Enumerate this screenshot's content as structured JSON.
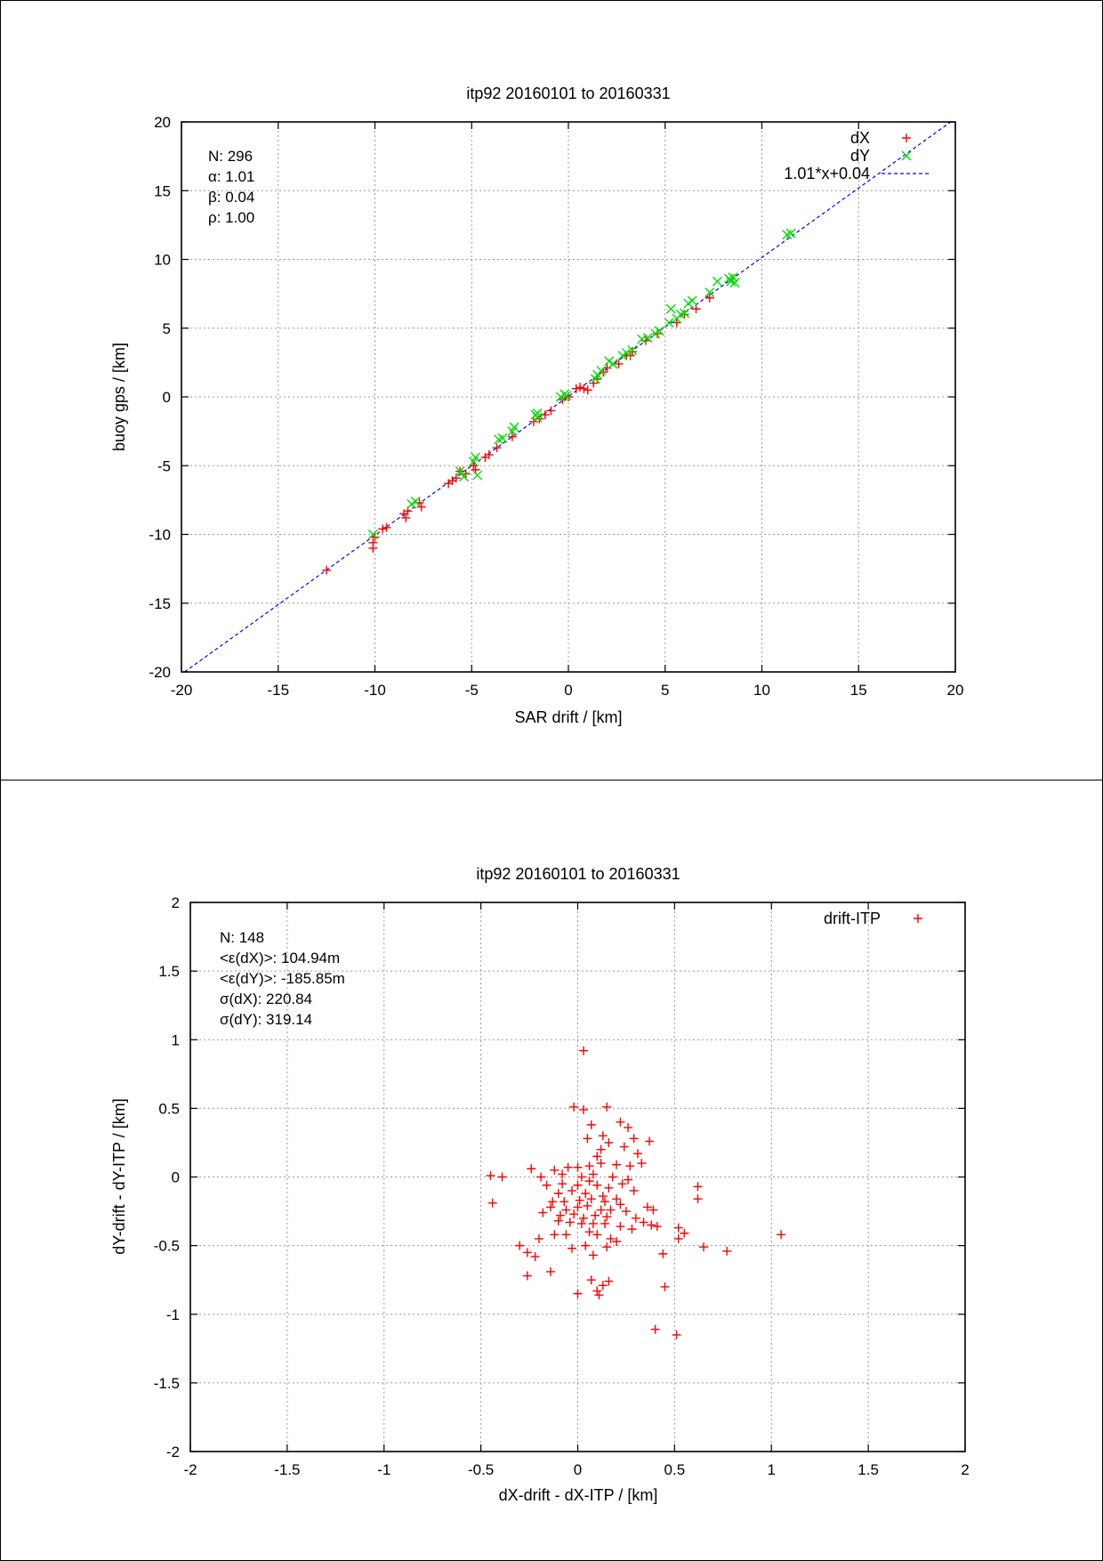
{
  "chart_data": [
    {
      "type": "scatter",
      "title": "itp92 20160101 to 20160331",
      "xlabel": "SAR drift / [km]",
      "ylabel": "buoy gps / [km]",
      "xlim": [
        -20,
        20
      ],
      "ylim": [
        -20,
        20
      ],
      "xticks": [
        "-20",
        "-15",
        "-10",
        "-5",
        "0",
        "5",
        "10",
        "15",
        "20"
      ],
      "yticks": [
        "-20",
        "-15",
        "-10",
        "-5",
        "0",
        "5",
        "10",
        "15",
        "20"
      ],
      "xtick_values": [
        -20,
        -15,
        -10,
        -5,
        0,
        5,
        10,
        15,
        20
      ],
      "ytick_values": [
        -20,
        -15,
        -10,
        -5,
        0,
        5,
        10,
        15,
        20
      ],
      "grid": true,
      "legend_position": "top-right",
      "stats": [
        "N: 296",
        "α: 1.01",
        "β: 0.04",
        "ρ: 1.00"
      ],
      "series": [
        {
          "name": "dX",
          "marker": "plus",
          "color": "#ff0000",
          "points": [
            [
              -12.5,
              -12.6
            ],
            [
              -10.1,
              -10.6
            ],
            [
              -10.1,
              -11.0
            ],
            [
              -10.0,
              -10.2
            ],
            [
              -9.6,
              -9.6
            ],
            [
              -9.4,
              -9.5
            ],
            [
              -8.5,
              -8.5
            ],
            [
              -8.4,
              -8.8
            ],
            [
              -8.3,
              -8.3
            ],
            [
              -7.7,
              -7.7
            ],
            [
              -7.6,
              -8.0
            ],
            [
              -6.2,
              -6.3
            ],
            [
              -6.0,
              -6.1
            ],
            [
              -5.8,
              -5.9
            ],
            [
              -5.6,
              -5.4
            ],
            [
              -5.3,
              -5.6
            ],
            [
              -4.9,
              -5.0
            ],
            [
              -4.8,
              -5.3
            ],
            [
              -4.3,
              -4.4
            ],
            [
              -4.1,
              -4.2
            ],
            [
              -3.7,
              -3.7
            ],
            [
              -2.9,
              -2.9
            ],
            [
              -1.8,
              -1.8
            ],
            [
              -1.5,
              -1.6
            ],
            [
              -1.2,
              -1.3
            ],
            [
              -0.9,
              -1.0
            ],
            [
              -0.3,
              -0.2
            ],
            [
              0.0,
              0.0
            ],
            [
              0.4,
              0.6
            ],
            [
              0.6,
              0.7
            ],
            [
              0.8,
              0.6
            ],
            [
              1.0,
              0.5
            ],
            [
              1.3,
              1.0
            ],
            [
              1.5,
              1.3
            ],
            [
              1.8,
              1.8
            ],
            [
              2.0,
              2.1
            ],
            [
              2.6,
              2.4
            ],
            [
              3.0,
              3.0
            ],
            [
              3.2,
              3.0
            ],
            [
              3.3,
              3.3
            ],
            [
              4.0,
              4.1
            ],
            [
              4.6,
              4.6
            ],
            [
              5.6,
              5.4
            ],
            [
              6.0,
              6.0
            ],
            [
              6.6,
              6.4
            ],
            [
              7.3,
              7.2
            ]
          ]
        },
        {
          "name": "dY",
          "marker": "cross",
          "color": "#00dd00",
          "points": [
            [
              -10.1,
              -10.0
            ],
            [
              -8.1,
              -7.8
            ],
            [
              -7.9,
              -7.6
            ],
            [
              -5.6,
              -5.4
            ],
            [
              -5.4,
              -5.8
            ],
            [
              -4.9,
              -4.7
            ],
            [
              -4.8,
              -4.4
            ],
            [
              -4.7,
              -5.7
            ],
            [
              -3.6,
              -3.1
            ],
            [
              -3.4,
              -3.0
            ],
            [
              -2.9,
              -2.5
            ],
            [
              -2.8,
              -2.2
            ],
            [
              -1.7,
              -1.3
            ],
            [
              -1.6,
              -1.2
            ],
            [
              -1.6,
              -1.5
            ],
            [
              -0.4,
              0.0
            ],
            [
              -0.2,
              0.2
            ],
            [
              -0.1,
              0.1
            ],
            [
              1.4,
              1.3
            ],
            [
              1.5,
              1.6
            ],
            [
              1.7,
              1.9
            ],
            [
              2.1,
              2.6
            ],
            [
              2.3,
              2.4
            ],
            [
              2.8,
              3.0
            ],
            [
              3.0,
              3.2
            ],
            [
              3.3,
              3.4
            ],
            [
              3.8,
              4.2
            ],
            [
              4.1,
              4.3
            ],
            [
              4.5,
              4.6
            ],
            [
              4.7,
              4.8
            ],
            [
              5.2,
              5.4
            ],
            [
              5.3,
              6.4
            ],
            [
              5.6,
              5.7
            ],
            [
              5.8,
              6.0
            ],
            [
              6.0,
              6.1
            ],
            [
              6.2,
              6.8
            ],
            [
              6.4,
              7.0
            ],
            [
              7.3,
              7.6
            ],
            [
              7.7,
              8.4
            ],
            [
              8.3,
              8.6
            ],
            [
              8.4,
              8.4
            ],
            [
              8.5,
              8.7
            ],
            [
              8.6,
              8.3
            ],
            [
              11.3,
              11.8
            ],
            [
              11.5,
              11.9
            ]
          ]
        },
        {
          "name": "1.01*x+0.04",
          "type": "line",
          "style": "dashed",
          "color": "#0000ff",
          "slope": 1.01,
          "intercept": 0.04
        }
      ]
    },
    {
      "type": "scatter",
      "title": "itp92 20160101 to 20160331",
      "xlabel": "dX-drift - dX-ITP / [km]",
      "ylabel": "dY-drift - dY-ITP / [km]",
      "xlim": [
        -2,
        2
      ],
      "ylim": [
        -2,
        2
      ],
      "xticks": [
        "-2",
        "-1.5",
        "-1",
        "-0.5",
        "0",
        "0.5",
        "1",
        "1.5",
        "2"
      ],
      "yticks": [
        "-2",
        "-1.5",
        "-1",
        "-0.5",
        "0",
        "0.5",
        "1",
        "1.5",
        "2"
      ],
      "xtick_values": [
        -2,
        -1.5,
        -1,
        -0.5,
        0,
        0.5,
        1,
        1.5,
        2
      ],
      "ytick_values": [
        -2,
        -1.5,
        -1,
        -0.5,
        0,
        0.5,
        1,
        1.5,
        2
      ],
      "grid": true,
      "legend_position": "top-right",
      "stats": [
        "N: 148",
        "<ε(dX)>:  104.94m",
        "<ε(dY)>: -185.85m",
        "σ(dX):  220.84",
        "σ(dY):  319.14"
      ],
      "series": [
        {
          "name": "drift-ITP",
          "marker": "plus",
          "color": "#ff0000",
          "points": [
            [
              0.03,
              0.92
            ],
            [
              -0.02,
              0.51
            ],
            [
              0.03,
              0.49
            ],
            [
              0.15,
              0.51
            ],
            [
              0.22,
              0.4
            ],
            [
              0.26,
              0.36
            ],
            [
              0.07,
              0.38
            ],
            [
              0.05,
              0.28
            ],
            [
              0.13,
              0.3
            ],
            [
              0.16,
              0.25
            ],
            [
              0.12,
              0.2
            ],
            [
              0.24,
              0.22
            ],
            [
              0.37,
              0.26
            ],
            [
              0.29,
              0.28
            ],
            [
              0.31,
              0.17
            ],
            [
              0.1,
              0.15
            ],
            [
              0.33,
              0.1
            ],
            [
              -0.05,
              0.07
            ],
            [
              0.0,
              0.07
            ],
            [
              0.06,
              0.08
            ],
            [
              0.12,
              0.1
            ],
            [
              0.2,
              0.09
            ],
            [
              0.27,
              0.08
            ],
            [
              -0.24,
              0.06
            ],
            [
              -0.12,
              0.05
            ],
            [
              -0.45,
              0.01
            ],
            [
              -0.39,
              0.0
            ],
            [
              -0.19,
              0.0
            ],
            [
              -0.08,
              0.02
            ],
            [
              0.02,
              0.0
            ],
            [
              0.08,
              0.02
            ],
            [
              0.18,
              0.0
            ],
            [
              0.23,
              -0.05
            ],
            [
              0.26,
              -0.02
            ],
            [
              -0.16,
              -0.06
            ],
            [
              -0.08,
              -0.05
            ],
            [
              0.0,
              -0.06
            ],
            [
              0.06,
              -0.03
            ],
            [
              0.1,
              -0.06
            ],
            [
              0.16,
              -0.08
            ],
            [
              0.29,
              -0.1
            ],
            [
              -0.1,
              -0.12
            ],
            [
              -0.03,
              -0.1
            ],
            [
              0.04,
              -0.12
            ],
            [
              0.13,
              -0.14
            ],
            [
              0.2,
              -0.16
            ],
            [
              -0.13,
              -0.18
            ],
            [
              -0.07,
              -0.18
            ],
            [
              0.01,
              -0.17
            ],
            [
              0.07,
              -0.16
            ],
            [
              0.14,
              -0.18
            ],
            [
              0.22,
              -0.2
            ],
            [
              0.36,
              -0.22
            ],
            [
              0.39,
              -0.24
            ],
            [
              -0.44,
              -0.19
            ],
            [
              -0.14,
              -0.22
            ],
            [
              -0.06,
              -0.24
            ],
            [
              0.0,
              -0.22
            ],
            [
              0.05,
              -0.21
            ],
            [
              0.12,
              -0.24
            ],
            [
              0.17,
              -0.24
            ],
            [
              0.25,
              -0.25
            ],
            [
              -0.18,
              -0.26
            ],
            [
              -0.09,
              -0.28
            ],
            [
              -0.02,
              -0.27
            ],
            [
              0.03,
              -0.3
            ],
            [
              0.09,
              -0.28
            ],
            [
              0.15,
              -0.29
            ],
            [
              0.3,
              -0.3
            ],
            [
              0.34,
              -0.33
            ],
            [
              -0.1,
              -0.32
            ],
            [
              -0.04,
              -0.33
            ],
            [
              0.02,
              -0.34
            ],
            [
              0.08,
              -0.34
            ],
            [
              0.14,
              -0.34
            ],
            [
              0.22,
              -0.36
            ],
            [
              0.28,
              -0.38
            ],
            [
              0.38,
              -0.35
            ],
            [
              0.41,
              -0.36
            ],
            [
              -0.12,
              -0.42
            ],
            [
              -0.06,
              -0.42
            ],
            [
              0.06,
              -0.4
            ],
            [
              0.1,
              -0.42
            ],
            [
              0.17,
              -0.45
            ],
            [
              0.2,
              -0.47
            ],
            [
              -0.2,
              -0.45
            ],
            [
              0.04,
              -0.5
            ],
            [
              0.15,
              -0.51
            ],
            [
              0.52,
              -0.45
            ],
            [
              0.55,
              -0.41
            ],
            [
              0.52,
              -0.37
            ],
            [
              0.62,
              -0.07
            ],
            [
              0.62,
              -0.16
            ],
            [
              1.05,
              -0.42
            ],
            [
              0.65,
              -0.51
            ],
            [
              0.77,
              -0.54
            ],
            [
              -0.3,
              -0.5
            ],
            [
              -0.26,
              -0.55
            ],
            [
              -0.22,
              -0.58
            ],
            [
              -0.03,
              -0.52
            ],
            [
              0.08,
              -0.57
            ],
            [
              0.44,
              -0.56
            ],
            [
              -0.26,
              -0.72
            ],
            [
              -0.14,
              -0.69
            ],
            [
              0.07,
              -0.75
            ],
            [
              0.16,
              -0.76
            ],
            [
              0.13,
              -0.79
            ],
            [
              0.1,
              -0.83
            ],
            [
              0.11,
              -0.86
            ],
            [
              0.0,
              -0.85
            ],
            [
              0.45,
              -0.8
            ],
            [
              0.4,
              -1.11
            ],
            [
              0.51,
              -1.15
            ]
          ]
        }
      ]
    }
  ]
}
